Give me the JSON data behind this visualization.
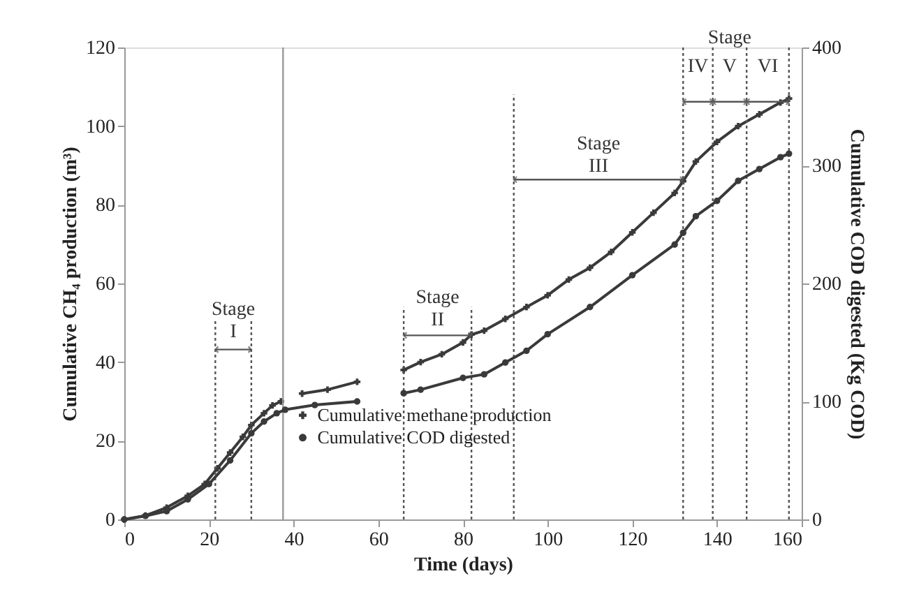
{
  "chart_data": {
    "type": "line",
    "xlabel": "Time (days)",
    "ylabel": "Cumulative CH₄ production (m³)",
    "y2label": "Cumulative COD digested (Kg COD)",
    "xlim": [
      0,
      160
    ],
    "xticks": [
      0,
      20,
      40,
      60,
      80,
      100,
      120,
      140,
      160
    ],
    "ylim": [
      0,
      120
    ],
    "yticks": [
      0,
      20,
      40,
      60,
      80,
      100,
      120
    ],
    "y2lim": [
      0,
      400
    ],
    "y2ticks": [
      0,
      100,
      200,
      300,
      400
    ],
    "grid": false,
    "legend": "bottom",
    "series": [
      {
        "name": "Cumulative methane production",
        "color": "#3a3a3a",
        "marker": "cross",
        "x": [
          0,
          5,
          10,
          15,
          19,
          22,
          25,
          28,
          30,
          33,
          35,
          37,
          39,
          42,
          48,
          55,
          60,
          66,
          70,
          75,
          80,
          82,
          85,
          90,
          95,
          100,
          105,
          110,
          115,
          120,
          125,
          130,
          132,
          135,
          140,
          145,
          150,
          155,
          157
        ],
        "values": [
          0,
          1,
          3,
          6,
          9,
          13,
          17,
          21,
          24,
          27,
          29,
          30,
          null,
          32,
          33,
          35,
          null,
          38,
          40,
          42,
          45,
          47,
          48,
          51,
          54,
          57,
          61,
          64,
          68,
          73,
          78,
          83,
          86,
          91,
          96,
          100,
          103,
          106,
          107
        ]
      },
      {
        "name": "Cumulative COD digested",
        "color": "#3a3a3a",
        "marker": "circle",
        "axis": "y2",
        "x": [
          0,
          5,
          10,
          15,
          20,
          25,
          30,
          33,
          36,
          38,
          45,
          55,
          60,
          66,
          70,
          80,
          85,
          90,
          95,
          100,
          110,
          120,
          130,
          132,
          135,
          140,
          145,
          150,
          155,
          157
        ],
        "values": [
          0,
          3,
          7,
          17,
          30,
          50,
          73,
          83,
          90,
          93,
          97,
          100,
          null,
          107,
          110,
          120,
          123,
          133,
          143,
          157,
          180,
          207,
          233,
          243,
          257,
          270,
          287,
          297,
          307,
          310
        ]
      }
    ],
    "ref_lines": [
      {
        "axis": "x",
        "value": 37.5,
        "color": "#999999",
        "line_style": "solid"
      },
      {
        "axis": "x",
        "value": 21.5,
        "color": "#555555",
        "line_style": "dotted"
      },
      {
        "axis": "x",
        "value": 30,
        "color": "#555555",
        "line_style": "dotted"
      },
      {
        "axis": "x",
        "value": 66,
        "color": "#555555",
        "line_style": "dotted"
      },
      {
        "axis": "x",
        "value": 82,
        "color": "#555555",
        "line_style": "dotted"
      },
      {
        "axis": "x",
        "value": 92,
        "color": "#555555",
        "line_style": "dotted"
      },
      {
        "axis": "x",
        "value": 132,
        "color": "#555555",
        "line_style": "dotted"
      },
      {
        "axis": "x",
        "value": 139,
        "color": "#555555",
        "line_style": "dotted"
      },
      {
        "axis": "x",
        "value": 147,
        "color": "#555555",
        "line_style": "dotted"
      },
      {
        "axis": "x",
        "value": 157,
        "color": "#555555",
        "line_style": "dotted"
      }
    ],
    "annotations": [
      "Stage\nI",
      "Stage\nII",
      "Stage\nIII",
      "Stage",
      "IV",
      "V",
      "VI"
    ]
  }
}
